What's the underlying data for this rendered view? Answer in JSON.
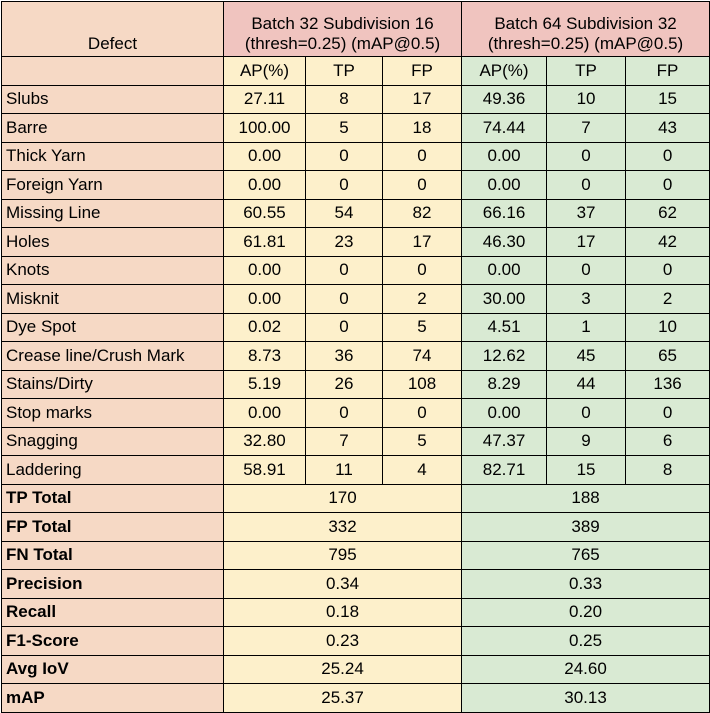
{
  "header": {
    "defect": "Defect",
    "group1_line1": "Batch 32 Subdivision 16",
    "group1_line2": "(thresh=0.25) (mAP@0.5)",
    "group2_line1": "Batch 64 Subdivision 32",
    "group2_line2": "(thresh=0.25) (mAP@0.5)",
    "subcols": [
      "AP(%)",
      "TP",
      "FP",
      "AP(%)",
      "TP",
      "FP"
    ]
  },
  "rows": [
    {
      "label": "Slubs",
      "v": [
        "27.11",
        "8",
        "17",
        "49.36",
        "10",
        "15"
      ]
    },
    {
      "label": "Barre",
      "v": [
        "100.00",
        "5",
        "18",
        "74.44",
        "7",
        "43"
      ]
    },
    {
      "label": "Thick Yarn",
      "v": [
        "0.00",
        "0",
        "0",
        "0.00",
        "0",
        "0"
      ]
    },
    {
      "label": "Foreign Yarn",
      "v": [
        "0.00",
        "0",
        "0",
        "0.00",
        "0",
        "0"
      ]
    },
    {
      "label": "Missing Line",
      "v": [
        "60.55",
        "54",
        "82",
        "66.16",
        "37",
        "62"
      ]
    },
    {
      "label": "Holes",
      "v": [
        "61.81",
        "23",
        "17",
        "46.30",
        "17",
        "42"
      ]
    },
    {
      "label": "Knots",
      "v": [
        "0.00",
        "0",
        "0",
        "0.00",
        "0",
        "0"
      ]
    },
    {
      "label": "Misknit",
      "v": [
        "0.00",
        "0",
        "2",
        "30.00",
        "3",
        "2"
      ]
    },
    {
      "label": "Dye Spot",
      "v": [
        "0.02",
        "0",
        "5",
        "4.51",
        "1",
        "10"
      ]
    },
    {
      "label": "Crease line/Crush Mark",
      "v": [
        "8.73",
        "36",
        "74",
        "12.62",
        "45",
        "65"
      ]
    },
    {
      "label": "Stains/Dirty",
      "v": [
        "5.19",
        "26",
        "108",
        "8.29",
        "44",
        "136"
      ]
    },
    {
      "label": "Stop marks",
      "v": [
        "0.00",
        "0",
        "0",
        "0.00",
        "0",
        "0"
      ]
    },
    {
      "label": "Snagging",
      "v": [
        "32.80",
        "7",
        "5",
        "47.37",
        "9",
        "6"
      ]
    },
    {
      "label": "Laddering",
      "v": [
        "58.91",
        "11",
        "4",
        "82.71",
        "15",
        "8"
      ]
    }
  ],
  "summary": [
    {
      "label": "TP Total",
      "b1": "170",
      "b2": "188"
    },
    {
      "label": "FP Total",
      "b1": "332",
      "b2": "389"
    },
    {
      "label": "FN Total",
      "b1": "795",
      "b2": "765"
    },
    {
      "label": "Precision",
      "b1": "0.34",
      "b2": "0.33"
    },
    {
      "label": "Recall",
      "b1": "0.18",
      "b2": "0.20"
    },
    {
      "label": "F1-Score",
      "b1": "0.23",
      "b2": "0.25"
    },
    {
      "label": "Avg IoV",
      "b1": "25.24",
      "b2": "24.60"
    },
    {
      "label": "mAP",
      "b1": "25.37",
      "b2": "30.13"
    }
  ],
  "colors": {
    "defect_col": "#f6d9c5",
    "group_header": "#f0c4bf",
    "batch32": "#fdf0cb",
    "batch64": "#d9ead3"
  }
}
